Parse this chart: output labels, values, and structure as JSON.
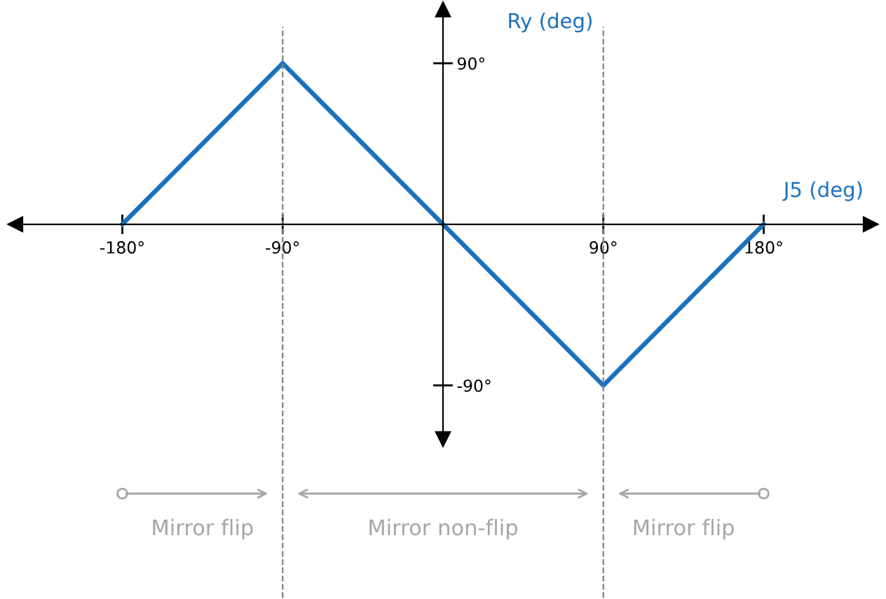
{
  "chart_data": {
    "type": "line",
    "xlabel": "J5 (deg)",
    "ylabel": "Ry (deg)",
    "x": [
      -180,
      -90,
      0,
      90,
      180
    ],
    "series": [
      {
        "color": "#1a72bb",
        "values": [
          0,
          90,
          0,
          -90,
          0
        ]
      }
    ],
    "xlim": [
      -240,
      240
    ],
    "ylim": [
      -120,
      120
    ],
    "xticks": [
      {
        "value": -180,
        "label": "-180°"
      },
      {
        "value": -90,
        "label": "-90°"
      },
      {
        "value": 90,
        "label": "90°"
      },
      {
        "value": 180,
        "label": "180°"
      }
    ],
    "yticks": [
      {
        "value": -90,
        "label": "-90°"
      },
      {
        "value": 90,
        "label": "90°"
      }
    ],
    "ref_lines": [
      {
        "axis": "x",
        "value": -90,
        "color": "#808080",
        "line_style": "dashed"
      },
      {
        "axis": "x",
        "value": 90,
        "color": "#808080",
        "line_style": "dashed"
      }
    ],
    "annotations": [
      "Mirror flip",
      "Mirror non-flip",
      "Mirror flip"
    ],
    "grid": false,
    "legend": false,
    "marker": "none",
    "line_style": "solid"
  }
}
